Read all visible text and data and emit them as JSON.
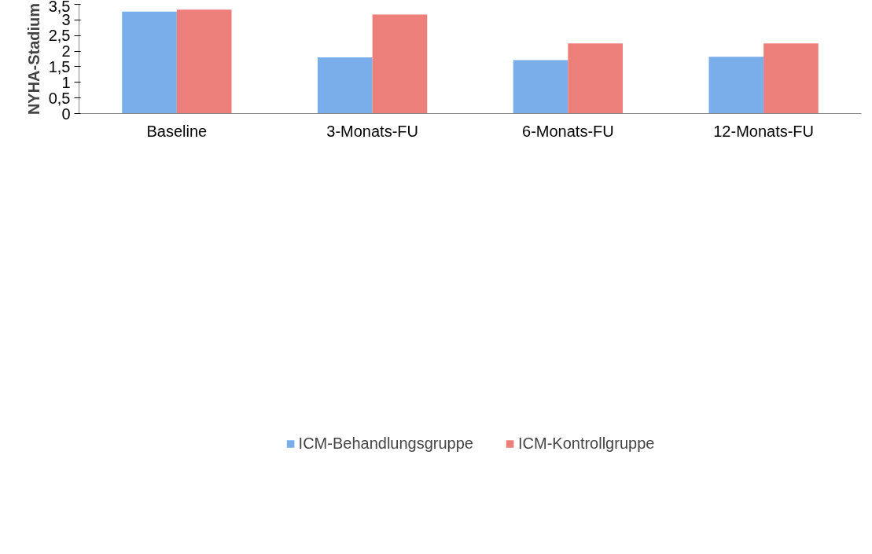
{
  "chart_data": {
    "type": "bar",
    "ylabel": "NYHA-Stadium",
    "categories": [
      "Baseline",
      "3-Monats-FU",
      "6-Monats-FU",
      "12-Monats-FU"
    ],
    "series": [
      {
        "name": "ICM-Behandlungsgruppe",
        "color": "#7aaeea",
        "values": [
          3.27,
          1.8,
          1.71,
          1.82
        ]
      },
      {
        "name": "ICM-Kontrollgruppe",
        "color": "#ec7f79",
        "values": [
          3.33,
          3.17,
          2.25,
          2.25
        ]
      }
    ],
    "ylim": [
      0,
      3.5
    ],
    "yticks": [
      0,
      {
        "value": 0.5,
        "label": "0,5"
      },
      1,
      {
        "value": 1.5,
        "label": "1,5"
      },
      2,
      {
        "value": 2.5,
        "label": "2,5"
      },
      3,
      {
        "value": 3.5,
        "label": "3,5"
      }
    ],
    "grid": false,
    "legend": "bottom"
  }
}
